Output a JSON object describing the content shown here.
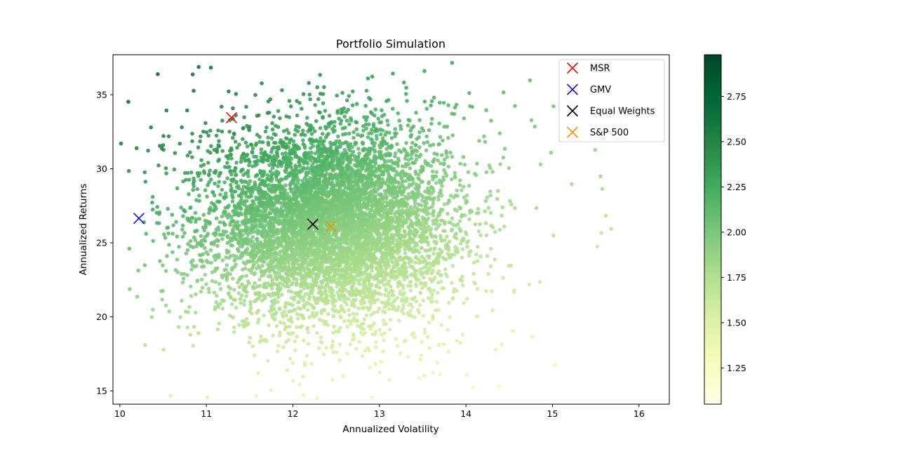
{
  "chart_data": {
    "type": "scatter",
    "title": "Portfolio Simulation",
    "xlabel": "Annualized Volatility",
    "ylabel": "Annualized Returns",
    "xlim": [
      9.92,
      16.35
    ],
    "ylim": [
      14.1,
      37.7
    ],
    "xticks": [
      10,
      11,
      12,
      13,
      14,
      15,
      16
    ],
    "yticks": [
      15,
      20,
      25,
      30,
      35
    ],
    "grid": false,
    "legend_position": "top-right",
    "cloud": {
      "center": [
        12.45,
        26.3
      ],
      "x_std": 0.83,
      "y_std": 3.85,
      "color_metric": "ratio"
    },
    "colorbar": {
      "colormap": "YlGn",
      "range": [
        1.05,
        2.98
      ],
      "ticks": [
        "1.25",
        "1.50",
        "1.75",
        "2.00",
        "2.25",
        "2.50",
        "2.75"
      ]
    },
    "markers": [
      {
        "name": "MSR",
        "x": 11.29,
        "y": 33.45,
        "color": "#e41010"
      },
      {
        "name": "GMV",
        "x": 10.22,
        "y": 26.65,
        "color": "#1010dd"
      },
      {
        "name": "Equal Weights",
        "x": 12.23,
        "y": 26.25,
        "color": "#000000"
      },
      {
        "name": "S&P 500",
        "x": 12.44,
        "y": 26.1,
        "color": "#ff8c00"
      }
    ]
  }
}
